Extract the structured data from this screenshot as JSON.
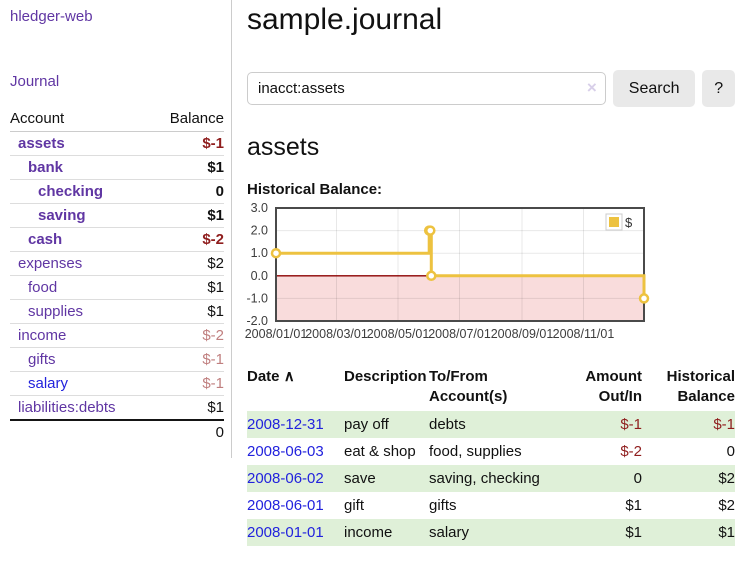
{
  "colors": {
    "link_purple": "#6036a3",
    "link_blue": "#2222dd",
    "negative_strong": "#8f1d1d",
    "negative_light": "#c07f7f",
    "row_green": "#dff0d8",
    "chart_gold": "#EDC240",
    "chart_negative_fill": "#f9dcdc",
    "chart_zero_line": "#8b0000",
    "chart_border": "#4a4a4a",
    "button_bg": "#e9e9e9",
    "divider": "#cccccc"
  },
  "sidebar": {
    "app_title": "hledger-web",
    "nav_journal": "Journal",
    "accounts_table": {
      "headers": {
        "account": "Account",
        "balance": "Balance"
      },
      "rows": [
        {
          "account": "assets",
          "balance": "$-1",
          "indent": 1,
          "bold": true,
          "balance_style": "neg-strong",
          "link": "purple"
        },
        {
          "account": "bank",
          "balance": "$1",
          "indent": 2,
          "bold": true,
          "balance_style": "normal",
          "link": "purple"
        },
        {
          "account": "checking",
          "balance": "0",
          "indent": 3,
          "bold": true,
          "balance_style": "normal",
          "link": "purple"
        },
        {
          "account": "saving",
          "balance": "$1",
          "indent": 3,
          "bold": true,
          "balance_style": "normal",
          "link": "purple"
        },
        {
          "account": "cash",
          "balance": "$-2",
          "indent": 2,
          "bold": true,
          "balance_style": "neg-strong",
          "link": "purple"
        },
        {
          "account": "expenses",
          "balance": "$2",
          "indent": 1,
          "bold": false,
          "balance_style": "normal",
          "link": "purple"
        },
        {
          "account": "food",
          "balance": "$1",
          "indent": 2,
          "bold": false,
          "balance_style": "normal",
          "link": "purple"
        },
        {
          "account": "supplies",
          "balance": "$1",
          "indent": 2,
          "bold": false,
          "balance_style": "normal",
          "link": "purple"
        },
        {
          "account": "income",
          "balance": "$-2",
          "indent": 1,
          "bold": false,
          "balance_style": "neg-light",
          "link": "purple"
        },
        {
          "account": "gifts",
          "balance": "$-1",
          "indent": 2,
          "bold": false,
          "balance_style": "neg-light",
          "link": "purple"
        },
        {
          "account": "salary",
          "balance": "$-1",
          "indent": 2,
          "bold": false,
          "balance_style": "neg-light",
          "link": "blue"
        },
        {
          "account": "liabilities:debts",
          "balance": "$1",
          "indent": 1,
          "bold": false,
          "balance_style": "normal",
          "link": "purple"
        }
      ],
      "total": "0"
    }
  },
  "header": {
    "title": "sample.journal"
  },
  "search": {
    "value": "inacct:assets",
    "clear_icon": "×",
    "button_label": "Search",
    "help_label": "?"
  },
  "account_page": {
    "title": "assets",
    "chart_label": "Historical Balance:"
  },
  "chart_data": {
    "type": "line",
    "title": "Historical Balance:",
    "series": [
      {
        "name": "$",
        "color": "#EDC240",
        "steps": true,
        "points": [
          {
            "date": "2008-01-01",
            "value": 1
          },
          {
            "date": "2008-06-01",
            "value": 2
          },
          {
            "date": "2008-06-02",
            "value": 2
          },
          {
            "date": "2008-06-03",
            "value": 0
          },
          {
            "date": "2008-12-31",
            "value": -1
          }
        ]
      }
    ],
    "x_range": [
      "2008/01/01",
      "2008/12/31"
    ],
    "x_ticks": [
      "2008/01/01",
      "2008/03/01",
      "2008/05/01",
      "2008/07/01",
      "2008/09/01",
      "2008/11/01"
    ],
    "y_ticks": [
      "3.0",
      "2.0",
      "1.0",
      "0.0",
      "-1.0",
      "-2.0"
    ],
    "ylim": [
      -2,
      3
    ],
    "grid": true,
    "negative_region_fill": "#f9dcdc",
    "zero_line_color": "#8b0000",
    "legend": {
      "label": "$",
      "position": "top-right"
    }
  },
  "register": {
    "headers": {
      "date": "Date",
      "sort": "∧",
      "description": "Description",
      "tofrom1": "To/From",
      "tofrom2": "Account(s)",
      "amount1": "Amount",
      "amount2": "Out/In",
      "bal1": "Historical",
      "bal2": "Balance"
    },
    "rows": [
      {
        "date": "2008-12-31",
        "description": "pay off",
        "accounts": "debts",
        "amount": "$-1",
        "amount_negative": true,
        "balance": "$-1",
        "balance_negative": true
      },
      {
        "date": "2008-06-03",
        "description": "eat & shop",
        "accounts": "food, supplies",
        "amount": "$-2",
        "amount_negative": true,
        "balance": "0",
        "balance_negative": false
      },
      {
        "date": "2008-06-02",
        "description": "save",
        "accounts": "saving, checking",
        "amount": "0",
        "amount_negative": false,
        "balance": "$2",
        "balance_negative": false
      },
      {
        "date": "2008-06-01",
        "description": "gift",
        "accounts": "gifts",
        "amount": "$1",
        "amount_negative": false,
        "balance": "$2",
        "balance_negative": false
      },
      {
        "date": "2008-01-01",
        "description": "income",
        "accounts": "salary",
        "amount": "$1",
        "amount_negative": false,
        "balance": "$1",
        "balance_negative": false
      }
    ]
  }
}
